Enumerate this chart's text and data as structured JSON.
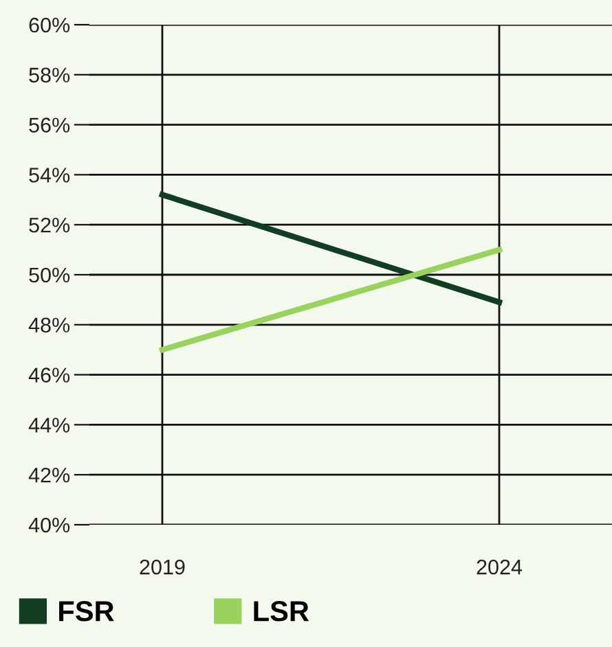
{
  "chart_data": {
    "type": "line",
    "categories": [
      "2019",
      "2024"
    ],
    "series": [
      {
        "name": "FSR",
        "color": "#123d22",
        "values": [
          53.2,
          48.9
        ]
      },
      {
        "name": "LSR",
        "color": "#9ad25e",
        "values": [
          47,
          51
        ]
      }
    ],
    "ylim": [
      40,
      60
    ],
    "yticks": [
      {
        "value": 40,
        "label": "40%"
      },
      {
        "value": 42,
        "label": "42%"
      },
      {
        "value": 44,
        "label": "44%"
      },
      {
        "value": 46,
        "label": "46%"
      },
      {
        "value": 48,
        "label": "48%"
      },
      {
        "value": 50,
        "label": "50%"
      },
      {
        "value": 52,
        "label": "52%"
      },
      {
        "value": 54,
        "label": "54%"
      },
      {
        "value": 56,
        "label": "56%"
      },
      {
        "value": 58,
        "label": "58%"
      },
      {
        "value": 60,
        "label": "60%"
      }
    ],
    "grid": true,
    "legend": "bottom left",
    "marker": "none",
    "line_style": "solid"
  }
}
